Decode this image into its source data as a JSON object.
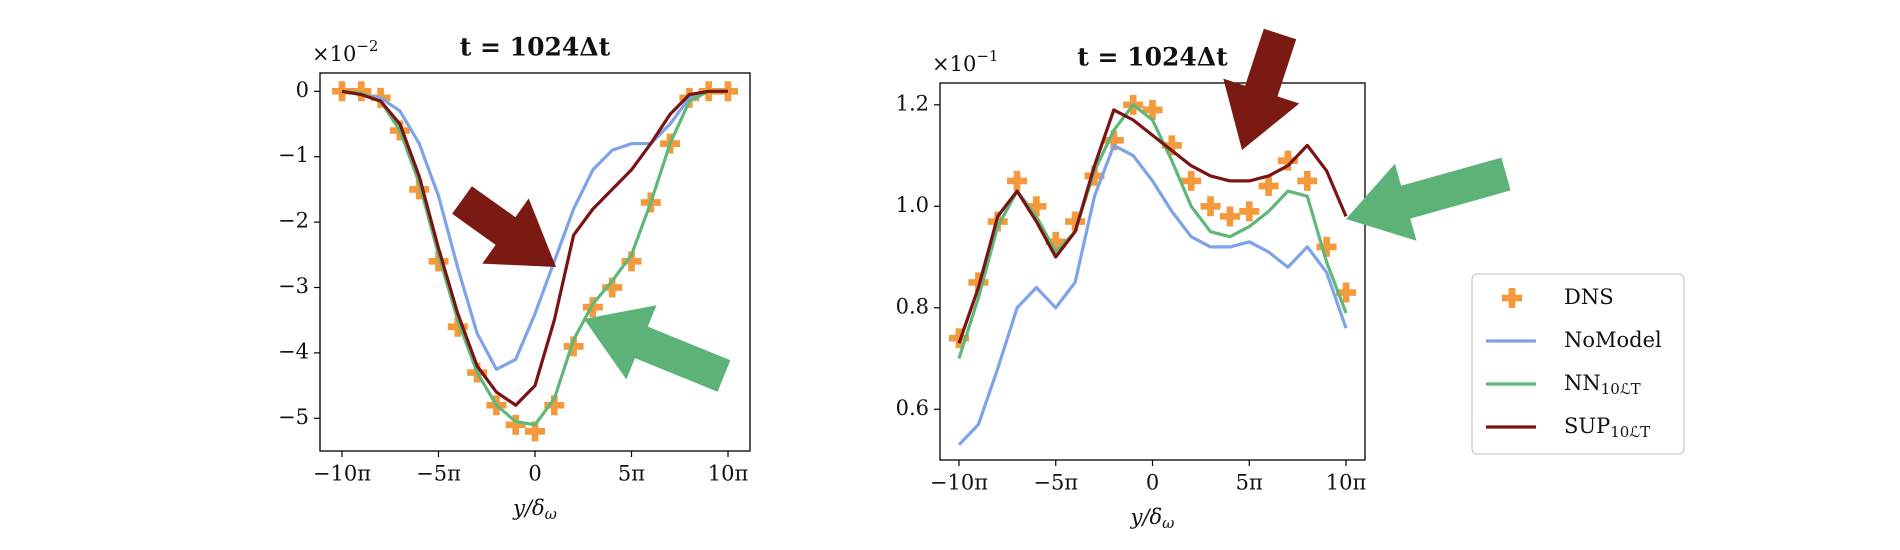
{
  "chart_data": [
    {
      "type": "line",
      "title": "t = 1024Δt",
      "y_offset": {
        "base": "×10",
        "exponent": "−2"
      },
      "x_label": {
        "text": "y/δ",
        "subscript": "ω"
      },
      "x": [
        -31.42,
        -28.27,
        -25.13,
        -21.99,
        -18.85,
        -15.71,
        -12.57,
        -9.42,
        -6.28,
        -3.14,
        0,
        3.14,
        6.28,
        9.42,
        12.57,
        15.71,
        18.85,
        21.99,
        25.13,
        28.27,
        31.42
      ],
      "xlim": [
        -35,
        35
      ],
      "xticks": [
        {
          "value": -31.42,
          "label": "−10π"
        },
        {
          "value": -15.71,
          "label": "−5π"
        },
        0,
        {
          "value": 15.71,
          "label": "5π"
        },
        {
          "value": 31.42,
          "label": "10π"
        }
      ],
      "ylim": [
        -5.5,
        0.28
      ],
      "yticks": [
        0,
        {
          "value": -1,
          "label": "−1"
        },
        {
          "value": -2,
          "label": "−2"
        },
        {
          "value": -3,
          "label": "−3"
        },
        {
          "value": -4,
          "label": "−4"
        },
        {
          "value": -5,
          "label": "−5"
        }
      ],
      "series": [
        {
          "name": "DNS",
          "color": "#f59a3c",
          "mode": "markers",
          "values": [
            0,
            0,
            -0.1,
            -0.6,
            -1.5,
            -2.6,
            -3.6,
            -4.3,
            -4.8,
            -5.1,
            -5.2,
            -4.8,
            -3.9,
            -3.3,
            -3.0,
            -2.6,
            -1.7,
            -0.8,
            -0.1,
            0,
            0
          ]
        },
        {
          "name": "NoModel",
          "color": "#7ea3e8",
          "mode": "lines",
          "values": [
            0,
            -0.05,
            -0.1,
            -0.3,
            -0.8,
            -1.6,
            -2.7,
            -3.7,
            -4.25,
            -4.1,
            -3.4,
            -2.6,
            -1.8,
            -1.2,
            -0.9,
            -0.8,
            -0.8,
            -0.5,
            -0.1,
            0,
            0
          ]
        },
        {
          "name": "NN",
          "name_subscript": "10ℒT",
          "color": "#5fb87a",
          "mode": "lines",
          "values": [
            0,
            -0.03,
            -0.15,
            -0.6,
            -1.4,
            -2.5,
            -3.5,
            -4.3,
            -4.8,
            -5.05,
            -5.1,
            -4.7,
            -3.8,
            -3.25,
            -2.9,
            -2.5,
            -1.7,
            -0.8,
            -0.15,
            0,
            0
          ]
        },
        {
          "name": "SUP",
          "name_subscript": "10ℒT",
          "color": "#7a1414",
          "mode": "lines",
          "values": [
            0,
            -0.05,
            -0.15,
            -0.5,
            -1.3,
            -2.4,
            -3.4,
            -4.2,
            -4.6,
            -4.8,
            -4.5,
            -3.5,
            -2.2,
            -1.8,
            -1.5,
            -1.2,
            -0.8,
            -0.35,
            -0.05,
            0,
            0
          ]
        }
      ]
    },
    {
      "type": "line",
      "title": "t = 1024Δt",
      "y_offset": {
        "base": "×10",
        "exponent": "−1"
      },
      "x_label": {
        "text": "y/δ",
        "subscript": "ω"
      },
      "x": [
        -31.42,
        -28.27,
        -25.13,
        -21.99,
        -18.85,
        -15.71,
        -12.57,
        -9.42,
        -6.28,
        -3.14,
        0,
        3.14,
        6.28,
        9.42,
        12.57,
        15.71,
        18.85,
        21.99,
        25.13,
        28.27,
        31.42
      ],
      "xlim": [
        -34.5,
        34.5
      ],
      "xticks": [
        {
          "value": -31.42,
          "label": "−10π"
        },
        {
          "value": -15.71,
          "label": "−5π"
        },
        0,
        {
          "value": 15.71,
          "label": "5π"
        },
        {
          "value": 31.42,
          "label": "10π"
        }
      ],
      "ylim": [
        0.5,
        1.243
      ],
      "yticks": [
        0.6,
        0.8,
        {
          "value": 1,
          "label": "1.0"
        },
        1.2
      ],
      "legend": "right",
      "series": [
        {
          "name": "DNS",
          "color": "#f59a3c",
          "mode": "markers",
          "values": [
            0.74,
            0.85,
            0.97,
            1.05,
            1.0,
            0.93,
            0.97,
            1.06,
            1.13,
            1.2,
            1.19,
            1.12,
            1.05,
            1.0,
            0.98,
            0.99,
            1.04,
            1.09,
            1.05,
            0.92,
            0.83
          ]
        },
        {
          "name": "NoModel",
          "color": "#7ea3e8",
          "mode": "lines",
          "values": [
            0.53,
            0.57,
            0.68,
            0.8,
            0.84,
            0.8,
            0.85,
            1.02,
            1.12,
            1.1,
            1.05,
            0.99,
            0.94,
            0.92,
            0.92,
            0.93,
            0.91,
            0.88,
            0.92,
            0.87,
            0.76
          ]
        },
        {
          "name": "NN",
          "name_subscript": "10ℒT",
          "color": "#5fb87a",
          "mode": "lines",
          "values": [
            0.7,
            0.82,
            0.96,
            1.03,
            0.98,
            0.91,
            0.95,
            1.07,
            1.15,
            1.2,
            1.17,
            1.09,
            1.0,
            0.95,
            0.94,
            0.96,
            0.99,
            1.03,
            1.02,
            0.89,
            0.79
          ]
        },
        {
          "name": "SUP",
          "name_subscript": "10ℒT",
          "color": "#7a1414",
          "mode": "lines",
          "values": [
            0.73,
            0.84,
            0.98,
            1.03,
            0.97,
            0.9,
            0.95,
            1.08,
            1.19,
            1.17,
            1.14,
            1.11,
            1.08,
            1.06,
            1.05,
            1.05,
            1.06,
            1.08,
            1.12,
            1.07,
            0.98
          ]
        }
      ]
    }
  ]
}
